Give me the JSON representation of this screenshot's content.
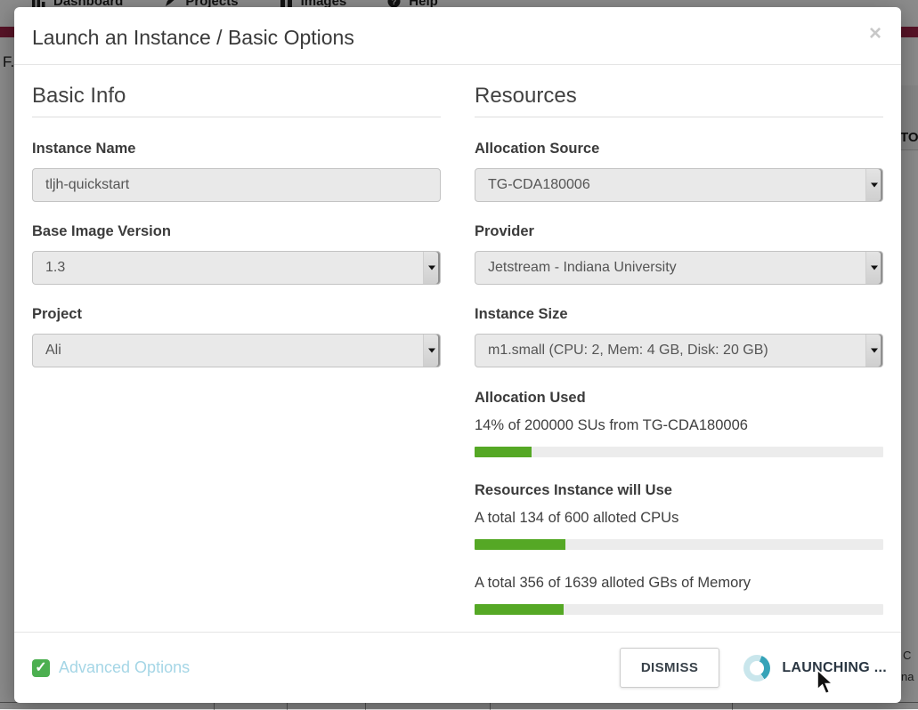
{
  "background": {
    "nav": {
      "items": [
        {
          "label": "Dashboard",
          "icon": "bar-chart-icon"
        },
        {
          "label": "Projects",
          "icon": "pencil-icon"
        },
        {
          "label": "Images",
          "icon": "images-icon"
        },
        {
          "label": "Help",
          "icon": "help-circle-icon"
        }
      ]
    },
    "fragments": {
      "left_text": "F.",
      "right_button_text": "TO",
      "right_small_1": "C",
      "right_small_2": "na"
    }
  },
  "modal": {
    "title": "Launch an Instance / Basic Options",
    "close_label": "×",
    "basic_info": {
      "heading": "Basic Info",
      "instance_name": {
        "label": "Instance Name",
        "value": "tljh-quickstart"
      },
      "base_image_version": {
        "label": "Base Image Version",
        "value": "1.3"
      },
      "project": {
        "label": "Project",
        "value": "Ali"
      }
    },
    "resources": {
      "heading": "Resources",
      "allocation_source": {
        "label": "Allocation Source",
        "value": "TG-CDA180006"
      },
      "provider": {
        "label": "Provider",
        "value": "Jetstream - Indiana University"
      },
      "instance_size": {
        "label": "Instance Size",
        "value": "m1.small (CPU: 2, Mem: 4 GB, Disk: 20 GB)"
      },
      "allocation_used": {
        "heading": "Allocation Used",
        "text": "14% of 200000 SUs from TG-CDA180006",
        "percent": 14
      },
      "instance_usage": {
        "heading": "Resources Instance will Use",
        "cpu_text": "A total 134 of 600 alloted CPUs",
        "cpu_percent": 22.3,
        "memory_text": "A total 356 of 1639 alloted GBs of Memory",
        "memory_percent": 21.7
      }
    },
    "footer": {
      "advanced_options_label": "Advanced Options",
      "dismiss_label": "DISMISS",
      "launching_label": "LAUNCHING ..."
    }
  },
  "colors": {
    "progress_green": "#55a825",
    "progress_track": "#ececec",
    "advanced_link": "#a5d6e6",
    "check_green": "#4caf50",
    "spinner_dark": "#35a3b8",
    "spinner_light": "#c9e6ec",
    "crimson_bar": "#a02448",
    "field_bg": "#e9e9e9"
  }
}
